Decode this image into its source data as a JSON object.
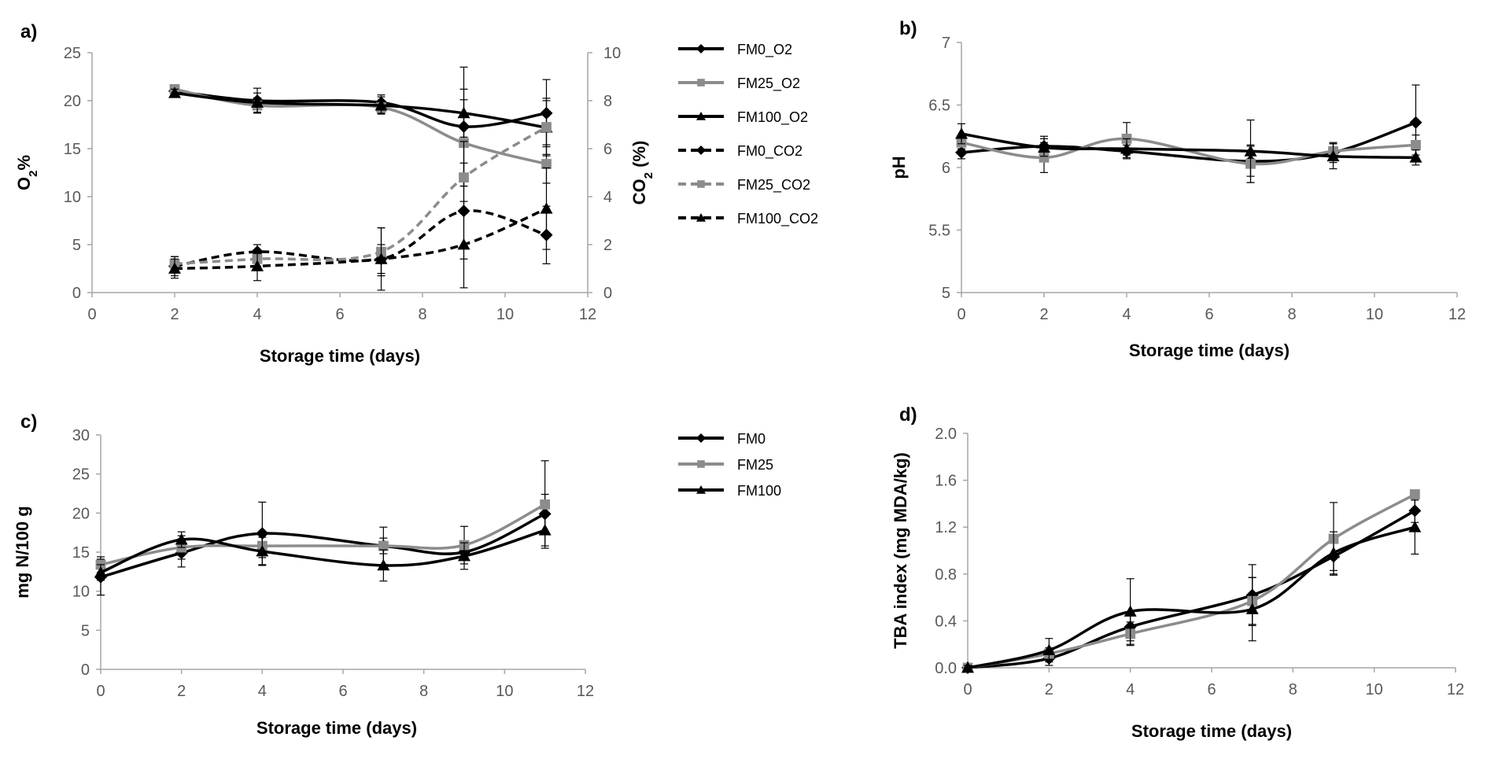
{
  "colors": {
    "black": "#000000",
    "gray": "#8c8c8c",
    "axis": "#a6a6a6"
  },
  "chart_data": [
    {
      "panel": "a)",
      "type": "line",
      "xlabel": "Storage time (days)",
      "ylabel": "O2%",
      "ylabel_main": "O",
      "ylabel_sub": "2",
      "ylabel_tail": "%",
      "y2label": "CO2 (%)",
      "y2label_main": "CO",
      "y2label_sub": "2",
      "y2label_tail": " (%)",
      "xlim": [
        0,
        12
      ],
      "ylim": [
        0,
        25
      ],
      "y2lim": [
        0,
        10
      ],
      "xticks": [
        0,
        2,
        4,
        6,
        8,
        10,
        12
      ],
      "yticks": [
        0,
        5,
        10,
        15,
        20,
        25
      ],
      "y2ticks": [
        0,
        2,
        4,
        6,
        8,
        10
      ],
      "series": [
        {
          "name": "FM0_O2",
          "axis": "left",
          "color": "#000000",
          "dash": false,
          "marker": "diamond",
          "x": [
            2,
            4,
            7,
            9,
            11
          ],
          "values": [
            21.0,
            20.0,
            19.8,
            17.3,
            18.7
          ],
          "err": [
            0.4,
            1.3,
            0.8,
            6.2,
            3.5
          ]
        },
        {
          "name": "FM25_O2",
          "axis": "left",
          "color": "#8c8c8c",
          "dash": false,
          "marker": "square",
          "x": [
            2,
            4,
            7,
            9,
            11
          ],
          "values": [
            21.2,
            19.5,
            19.3,
            15.6,
            13.4
          ],
          "err": [
            0.3,
            0.8,
            0.6,
            4.5,
            2.0
          ]
        },
        {
          "name": "FM100_O2",
          "axis": "left",
          "color": "#000000",
          "dash": false,
          "marker": "triangle",
          "x": [
            2,
            4,
            7,
            9,
            11
          ],
          "values": [
            20.8,
            19.8,
            19.5,
            18.7,
            17.2
          ],
          "err": [
            0.4,
            1.0,
            0.9,
            2.5,
            2.8
          ]
        },
        {
          "name": "FM0_CO2",
          "axis": "right",
          "color": "#000000",
          "dash": true,
          "marker": "diamond",
          "x": [
            2,
            4,
            7,
            9,
            11
          ],
          "values": [
            1.1,
            1.7,
            1.4,
            3.4,
            2.4
          ],
          "err": [
            0.4,
            0.3,
            1.3,
            2.0,
            1.2
          ]
        },
        {
          "name": "FM25_CO2",
          "axis": "right",
          "color": "#8c8c8c",
          "dash": true,
          "marker": "square",
          "x": [
            2,
            4,
            7,
            9,
            11
          ],
          "values": [
            1.2,
            1.4,
            1.7,
            4.8,
            6.9
          ],
          "err": [
            0.3,
            0.3,
            1.0,
            1.5,
            1.2
          ]
        },
        {
          "name": "FM100_CO2",
          "axis": "right",
          "color": "#000000",
          "dash": true,
          "marker": "triangle",
          "x": [
            2,
            4,
            7,
            9,
            11
          ],
          "values": [
            1.0,
            1.1,
            1.4,
            2.0,
            3.5
          ],
          "err": [
            0.4,
            0.6,
            0.6,
            1.8,
            1.7
          ]
        }
      ]
    },
    {
      "panel": "b)",
      "type": "line",
      "xlabel": "Storage time (days)",
      "ylabel": "pH",
      "xlim": [
        0,
        12
      ],
      "ylim": [
        5,
        7
      ],
      "xticks": [
        0,
        2,
        4,
        6,
        8,
        10,
        12
      ],
      "yticks": [
        5,
        5.5,
        6,
        6.5,
        7
      ],
      "series": [
        {
          "name": "FM0",
          "color": "#000000",
          "marker": "diamond",
          "x": [
            0,
            2,
            4,
            7,
            9,
            11
          ],
          "values": [
            6.12,
            6.17,
            6.13,
            6.05,
            6.12,
            6.36
          ],
          "err": [
            0.05,
            0.08,
            0.05,
            0.12,
            0.08,
            0.3
          ]
        },
        {
          "name": "FM25",
          "color": "#8c8c8c",
          "marker": "square",
          "x": [
            0,
            2,
            4,
            7,
            9,
            11
          ],
          "values": [
            6.2,
            6.08,
            6.23,
            6.03,
            6.13,
            6.18
          ],
          "err": [
            0.05,
            0.12,
            0.13,
            0.15,
            0.06,
            0.08
          ]
        },
        {
          "name": "FM100",
          "color": "#000000",
          "marker": "triangle",
          "x": [
            0,
            2,
            4,
            7,
            9,
            11
          ],
          "values": [
            6.27,
            6.16,
            6.15,
            6.13,
            6.09,
            6.08
          ],
          "err": [
            0.08,
            0.07,
            0.08,
            0.25,
            0.1,
            0.06
          ]
        }
      ]
    },
    {
      "panel": "c)",
      "type": "line",
      "xlabel": "Storage time (days)",
      "ylabel": "mg N/100 g",
      "xlim": [
        0,
        12
      ],
      "ylim": [
        0,
        30
      ],
      "xticks": [
        0,
        2,
        4,
        6,
        8,
        10,
        12
      ],
      "yticks": [
        0,
        5,
        10,
        15,
        20,
        25,
        30
      ],
      "series": [
        {
          "name": "FM0",
          "color": "#000000",
          "marker": "diamond",
          "x": [
            0,
            2,
            4,
            7,
            9,
            11
          ],
          "values": [
            11.8,
            14.9,
            17.4,
            15.8,
            15.0,
            19.9
          ],
          "err": [
            2.3,
            1.8,
            4.0,
            1.0,
            1.0,
            2.5
          ]
        },
        {
          "name": "FM25",
          "color": "#8c8c8c",
          "marker": "square",
          "x": [
            0,
            2,
            4,
            7,
            9,
            11
          ],
          "values": [
            13.4,
            15.6,
            15.8,
            15.8,
            15.9,
            21.1
          ],
          "err": [
            1.0,
            1.5,
            1.5,
            2.4,
            2.4,
            5.6
          ]
        },
        {
          "name": "FM100",
          "color": "#000000",
          "marker": "triangle",
          "x": [
            0,
            2,
            4,
            7,
            9,
            11
          ],
          "values": [
            12.4,
            16.6,
            15.1,
            13.3,
            14.5,
            17.8
          ],
          "err": [
            1.0,
            1.0,
            1.8,
            2.0,
            1.7,
            2.0
          ]
        }
      ]
    },
    {
      "panel": "d)",
      "type": "line",
      "xlabel": "Storage time (days)",
      "ylabel": "TBA index (mg MDA/kg)",
      "xlim": [
        0,
        12
      ],
      "ylim": [
        0,
        2.0
      ],
      "xticks": [
        0,
        2,
        4,
        6,
        8,
        10,
        12
      ],
      "yticks": [
        0.0,
        0.4,
        0.8,
        1.2,
        1.6,
        2.0
      ],
      "ytick_labels": [
        "0.0",
        "0.4",
        "0.8",
        "1.2",
        "1.6",
        "2.0"
      ],
      "series": [
        {
          "name": "FM0",
          "color": "#000000",
          "marker": "diamond",
          "x": [
            0,
            2,
            4,
            7,
            9,
            11
          ],
          "values": [
            0.0,
            0.08,
            0.35,
            0.62,
            0.95,
            1.34
          ],
          "err": [
            0.02,
            0.06,
            0.12,
            0.26,
            0.12,
            0.1
          ]
        },
        {
          "name": "FM25",
          "color": "#8c8c8c",
          "marker": "square",
          "x": [
            0,
            2,
            4,
            7,
            9,
            11
          ],
          "values": [
            0.0,
            0.12,
            0.29,
            0.57,
            1.1,
            1.48
          ],
          "err": [
            0.02,
            0.05,
            0.1,
            0.2,
            0.31,
            0.03
          ]
        },
        {
          "name": "FM100",
          "color": "#000000",
          "marker": "triangle",
          "x": [
            0,
            2,
            4,
            7,
            9,
            11
          ],
          "values": [
            0.0,
            0.15,
            0.48,
            0.5,
            0.98,
            1.2
          ],
          "err": [
            0.02,
            0.1,
            0.28,
            0.27,
            0.18,
            0.23
          ]
        }
      ]
    }
  ],
  "legends": [
    {
      "id": "legend-top",
      "entries": [
        "FM0_O2",
        "FM25_O2",
        "FM100_O2",
        "FM0_CO2",
        "FM25_CO2",
        "FM100_CO2"
      ]
    },
    {
      "id": "legend-bottom",
      "entries": [
        "FM0",
        "FM25",
        "FM100"
      ]
    }
  ]
}
